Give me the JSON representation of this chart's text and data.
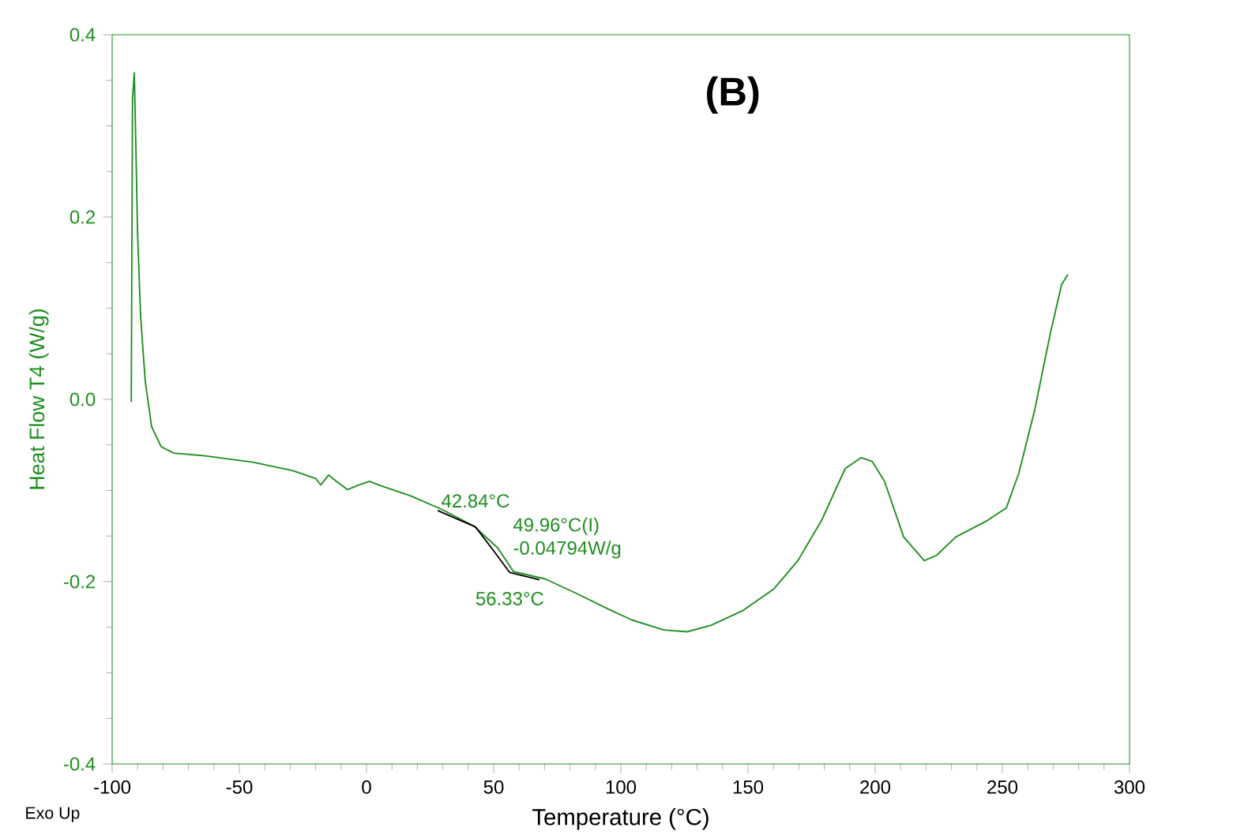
{
  "chart_data": {
    "type": "line",
    "title": "(B)",
    "xlabel": "Temperature (°C)",
    "ylabel": "Heat Flow T4 (W/g)",
    "xlim": [
      -100,
      300
    ],
    "xticks": [
      -100,
      -50,
      0,
      50,
      100,
      150,
      200,
      250,
      300
    ],
    "ylim": [
      -0.4,
      0.4
    ],
    "yticks": [
      -0.4,
      -0.2,
      {
        "value": 0,
        "label": "0.0"
      },
      0.2,
      0.4
    ],
    "grid": false,
    "series": [
      {
        "color": "#1f8f1f",
        "x": [
          -92.5,
          -92,
          -91.3,
          -90.7,
          -90,
          -88.8,
          -87,
          -84.5,
          -80.7,
          -75.8,
          -63.4,
          -44.7,
          -29.2,
          -19.9,
          -18,
          -14.9,
          -11.8,
          -7.5,
          -3.1,
          1.2,
          4.9,
          17.4,
          29.8,
          42.2,
          51.6,
          57.8,
          70.2,
          82.6,
          95,
          104.3,
          116.8,
          126,
          135.4,
          147.8,
          160.2,
          169.6,
          178.9,
          188.2,
          194.4,
          198.8,
          203.7,
          211.2,
          219.3,
          224.2,
          231.7,
          244.1,
          251.6,
          256.5,
          262.7,
          269,
          273.3,
          275.8
        ],
        "values": [
          -0.003,
          0.33,
          0.358,
          0.28,
          0.18,
          0.09,
          0.02,
          -0.03,
          -0.052,
          -0.059,
          -0.062,
          -0.069,
          -0.078,
          -0.087,
          -0.094,
          -0.083,
          -0.09,
          -0.099,
          -0.094,
          -0.09,
          -0.094,
          -0.106,
          -0.121,
          -0.139,
          -0.163,
          -0.189,
          -0.197,
          -0.213,
          -0.23,
          -0.242,
          -0.253,
          -0.255,
          -0.248,
          -0.232,
          -0.208,
          -0.177,
          -0.133,
          -0.076,
          -0.064,
          -0.068,
          -0.09,
          -0.151,
          -0.177,
          -0.171,
          -0.151,
          -0.133,
          -0.119,
          -0.081,
          -0.012,
          0.074,
          0.126,
          0.137
        ]
      },
      {
        "color": "#000000",
        "x": [
          28,
          42.84,
          49.96,
          56.33,
          68
        ],
        "values": [
          -0.122,
          -0.14,
          -0.166,
          -0.19,
          -0.198
        ]
      }
    ],
    "annotations": [
      {
        "text": "42.84°C",
        "x": 42.84,
        "y": -0.14
      },
      {
        "text": "49.96°C(I) -0.04794W/g",
        "x": 49.96,
        "y": -0.166
      },
      {
        "text": "56.33°C",
        "x": 56.33,
        "y": -0.19
      },
      "Exo Up"
    ]
  }
}
